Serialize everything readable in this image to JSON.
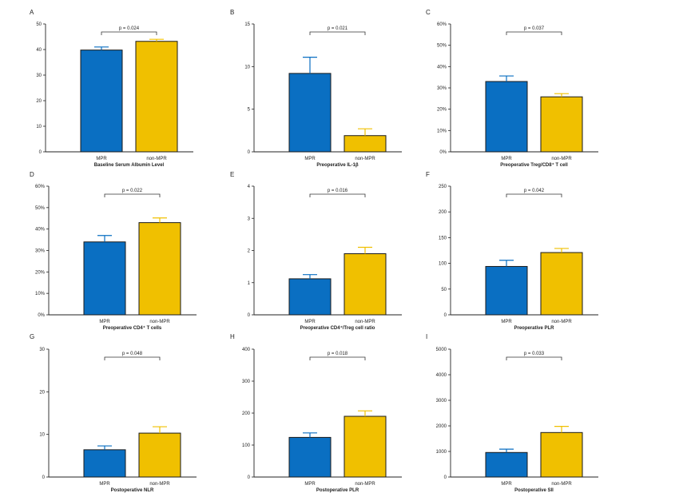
{
  "colors": {
    "MPR": "#0a6fc2",
    "non-MPR": "#f0c000",
    "err_MPR": "#0a6fc2",
    "err_non": "#f0c000",
    "axis": "#222222"
  },
  "chart_data": [
    {
      "panel": "A",
      "type": "bar",
      "categories": [
        "MPR",
        "non-MPR"
      ],
      "values": [
        39.8,
        43.2
      ],
      "errors": [
        1.2,
        0.8
      ],
      "xlabel": "Baseline Serum Albumin Level",
      "ylabel": "",
      "ylim": [
        0,
        50
      ],
      "yticks": [
        "0",
        "10",
        "20",
        "30",
        "40",
        "50"
      ],
      "pvalue": "p = 0.024"
    },
    {
      "panel": "B",
      "type": "bar",
      "categories": [
        "MPR",
        "non-MPR"
      ],
      "values": [
        9.2,
        1.9
      ],
      "errors": [
        1.9,
        0.8
      ],
      "xlabel": "Preoperative IL-1β",
      "ylabel": "",
      "ylim": [
        0,
        15
      ],
      "yticks": [
        "0",
        "5",
        "10",
        "15"
      ],
      "pvalue": "p = 0.021"
    },
    {
      "panel": "C",
      "type": "bar",
      "categories": [
        "MPR",
        "non-MPR"
      ],
      "values": [
        33,
        25.8
      ],
      "errors": [
        2.6,
        1.5
      ],
      "xlabel": "Preoperative Treg/CD8⁺ T cell",
      "ylabel": "",
      "ylim": [
        0,
        60
      ],
      "yticks": [
        "0%",
        "10%",
        "20%",
        "30%",
        "40%",
        "50%",
        "60%"
      ],
      "pvalue": "p = 0.037"
    },
    {
      "panel": "D",
      "type": "bar",
      "categories": [
        "MPR",
        "non-MPR"
      ],
      "values": [
        34,
        43
      ],
      "errors": [
        3,
        2.2
      ],
      "xlabel": "Preoperative CD4⁺ T cells",
      "ylabel": "",
      "ylim": [
        0,
        60
      ],
      "yticks": [
        "0%",
        "10%",
        "20%",
        "30%",
        "40%",
        "50%",
        "60%"
      ],
      "pvalue": "p = 0.022"
    },
    {
      "panel": "E",
      "type": "bar",
      "categories": [
        "MPR",
        "non-MPR"
      ],
      "values": [
        1.12,
        1.9
      ],
      "errors": [
        0.13,
        0.2
      ],
      "xlabel": "Preoperative CD4⁺/Treg cell ratio",
      "ylabel": "",
      "ylim": [
        0,
        4
      ],
      "yticks": [
        "0",
        "1",
        "2",
        "3",
        "4"
      ],
      "pvalue": "p = 0.016"
    },
    {
      "panel": "F",
      "type": "bar",
      "categories": [
        "MPR",
        "non-MPR"
      ],
      "values": [
        94,
        121
      ],
      "errors": [
        12,
        8
      ],
      "xlabel": "Preoperative PLR",
      "ylabel": "",
      "ylim": [
        0,
        250
      ],
      "yticks": [
        "0",
        "50",
        "100",
        "150",
        "200",
        "250"
      ],
      "pvalue": "p = 0.042"
    },
    {
      "panel": "G",
      "type": "bar",
      "categories": [
        "MPR",
        "non-MPR"
      ],
      "values": [
        6.4,
        10.3
      ],
      "errors": [
        0.9,
        1.5
      ],
      "xlabel": "Postoperative NLR",
      "ylabel": "",
      "ylim": [
        0,
        30
      ],
      "yticks": [
        "0",
        "10",
        "20",
        "30"
      ],
      "pvalue": "p = 0.048"
    },
    {
      "panel": "H",
      "type": "bar",
      "categories": [
        "MPR",
        "non-MPR"
      ],
      "values": [
        124,
        190
      ],
      "errors": [
        14,
        17
      ],
      "xlabel": "Postoperative PLR",
      "ylabel": "",
      "ylim": [
        0,
        400
      ],
      "yticks": [
        "0",
        "100",
        "200",
        "300",
        "400"
      ],
      "pvalue": "p = 0.018"
    },
    {
      "panel": "I",
      "type": "bar",
      "categories": [
        "MPR",
        "non-MPR"
      ],
      "values": [
        960,
        1740
      ],
      "errors": [
        130,
        240
      ],
      "xlabel": "Postoperative SII",
      "ylabel": "",
      "ylim": [
        0,
        5000
      ],
      "yticks": [
        "0",
        "1000",
        "2000",
        "3000",
        "4000",
        "5000"
      ],
      "pvalue": "p = 0.033"
    }
  ]
}
